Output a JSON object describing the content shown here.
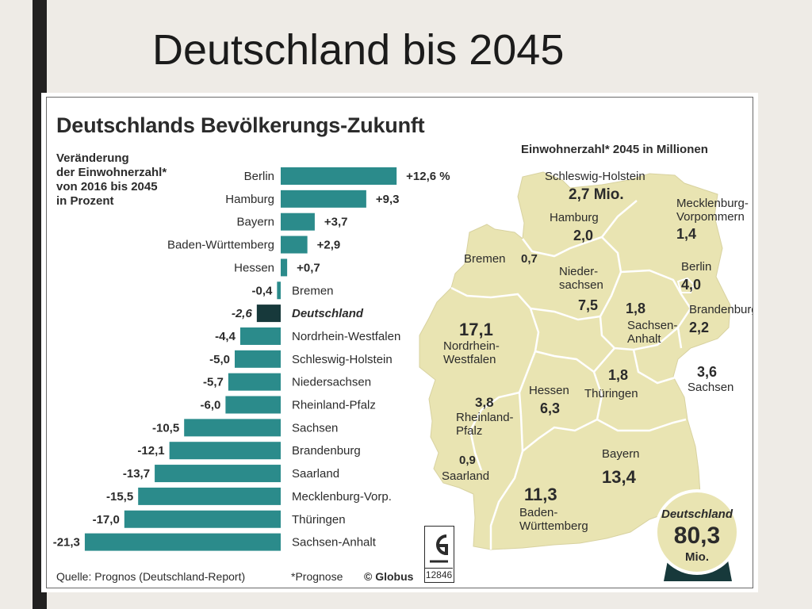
{
  "slide": {
    "title": "Deutschland bis 2045"
  },
  "chart_data": {
    "type": "bar",
    "title": "Deutschlands Bevölkerungs-Zukunft",
    "subtitle_lines": [
      "Veränderung",
      "der Einwohnerzahl*",
      "von 2016 bis 2045",
      "in Prozent"
    ],
    "categories": [
      "Berlin",
      "Hamburg",
      "Bayern",
      "Baden-Württemberg",
      "Hessen",
      "Bremen",
      "Deutschland",
      "Nordrhein-Westfalen",
      "Schleswig-Holstein",
      "Niedersachsen",
      "Rheinland-Pfalz",
      "Sachsen",
      "Brandenburg",
      "Saarland",
      "Mecklenburg-Vorp.",
      "Thüringen",
      "Sachsen-Anhalt"
    ],
    "values": [
      12.6,
      9.3,
      3.7,
      2.9,
      0.7,
      -0.4,
      -2.6,
      -4.4,
      -5.0,
      -5.7,
      -6.0,
      -10.5,
      -12.1,
      -13.7,
      -15.5,
      -17.0,
      -21.3
    ],
    "value_labels": [
      "+12,6 %",
      "+9,3",
      "+3,7",
      "+2,9",
      "+0,7",
      "-0,4",
      "-2,6",
      "-4,4",
      "-5,0",
      "-5,7",
      "-6,0",
      "-10,5",
      "-12,1",
      "-13,7",
      "-15,5",
      "-17,0",
      "-21,3"
    ],
    "highlight": "Deutschland",
    "colors": {
      "bar": "#2b8b8b",
      "highlight": "#17393b",
      "map_fill": "#e9e4b2",
      "map_border": "#ffffff"
    }
  },
  "map": {
    "title": "Einwohnerzahl* 2045 in Millionen",
    "labels": [
      {
        "name": "Schleswig-Holstein",
        "value": "2,7 Mio."
      },
      {
        "name": "Mecklenburg-\nVorpommern",
        "value": "1,4"
      },
      {
        "name": "Hamburg",
        "value": "2,0"
      },
      {
        "name": "Bremen",
        "value": "0,7"
      },
      {
        "name": "Berlin",
        "value": "4,0"
      },
      {
        "name": "Nieder-\nsachsen",
        "value": "7,5"
      },
      {
        "name": "Brandenburg",
        "value": "2,2"
      },
      {
        "name": "Sachsen-\nAnhalt",
        "value": "1,8"
      },
      {
        "name": "Nordrhein-\nWestfalen",
        "value": "17,1"
      },
      {
        "name": "Thüringen",
        "value": "1,8"
      },
      {
        "name": "Sachsen",
        "value": "3,6"
      },
      {
        "name": "Hessen",
        "value": "6,3"
      },
      {
        "name": "Rheinland-\nPfalz",
        "value": "3,8"
      },
      {
        "name": "Saarland",
        "value": "0,9"
      },
      {
        "name": "Bayern",
        "value": "13,4"
      },
      {
        "name": "Baden-\nWürttemberg",
        "value": "11,3"
      }
    ],
    "total": {
      "name": "Deutschland",
      "value": "80,3",
      "unit": "Mio."
    }
  },
  "footer": {
    "source": "Quelle: Prognos (Deutschland-Report)",
    "note": "*Prognose",
    "copyright": "© Globus",
    "logo_number": "12846"
  }
}
